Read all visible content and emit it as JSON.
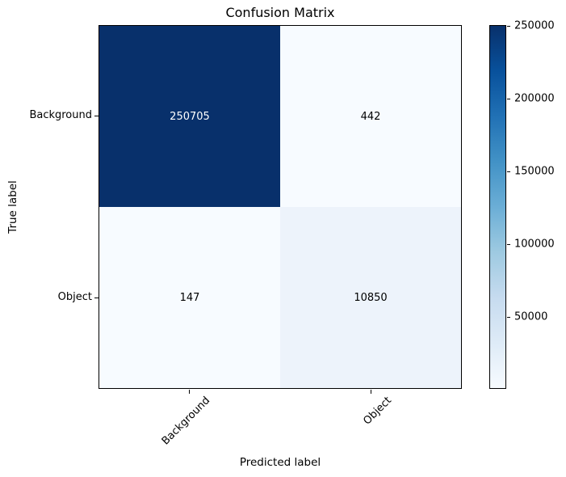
{
  "chart_data": {
    "type": "heatmap",
    "title": "Confusion Matrix",
    "xlabel": "Predicted label",
    "ylabel": "True label",
    "x_categories": [
      "Background",
      "Object"
    ],
    "y_categories": [
      "Background",
      "Object"
    ],
    "matrix": [
      [
        250705,
        442
      ],
      [
        147,
        10850
      ]
    ],
    "colormap": "Blues",
    "vmin": 147,
    "vmax": 250705,
    "colorbar_ticks": [
      50000,
      100000,
      150000,
      200000,
      250000
    ],
    "colorbar_position": "right",
    "grid": false,
    "cell_colors": [
      [
        "#08306b",
        "#f7fbff"
      ],
      [
        "#f7fbff",
        "#edf3fb"
      ]
    ],
    "cell_text_colors": [
      [
        "#ffffff",
        "#000000"
      ],
      [
        "#000000",
        "#000000"
      ]
    ]
  }
}
